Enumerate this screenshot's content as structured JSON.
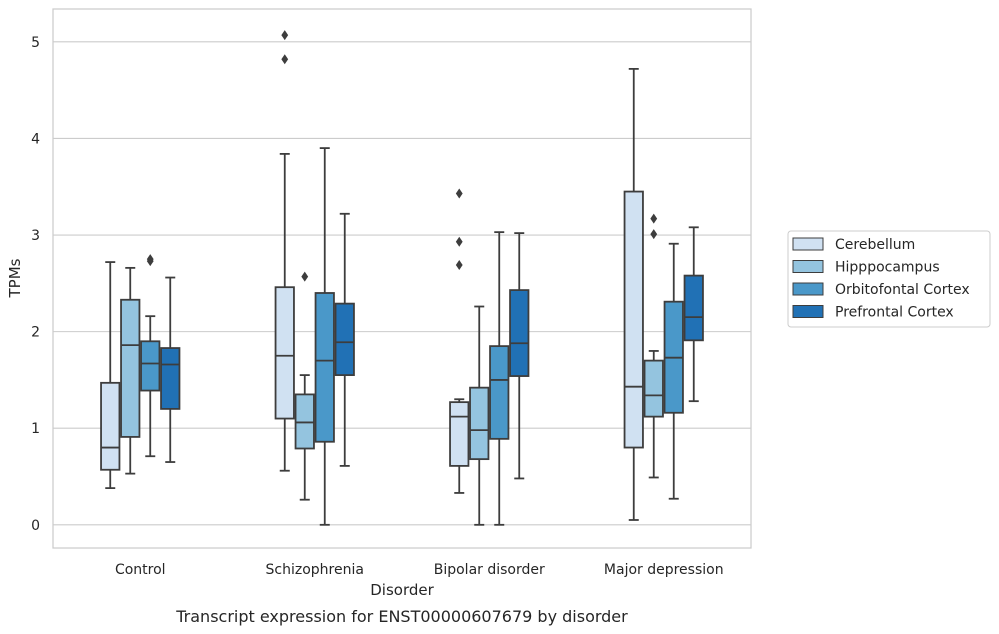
{
  "chart_data": {
    "type": "box",
    "title": "Transcript expression for ENST00000607679 by disorder",
    "xlabel": "Disorder",
    "ylabel": "TPMs",
    "ylim": [
      -0.24,
      5.34
    ],
    "yticks": [
      "0",
      "1",
      "2",
      "3",
      "4",
      "5"
    ],
    "grid": "horizontal",
    "legend_position": "right",
    "categories": [
      "Control",
      "Schizophrenia",
      "Bipolar disorder",
      "Major depression"
    ],
    "series": [
      {
        "name": "Cerebellum",
        "color": "#d0e1f2",
        "boxes": [
          {
            "whislo": 0.38,
            "q1": 0.57,
            "med": 0.8,
            "q3": 1.47,
            "whishi": 2.72,
            "fliers": []
          },
          {
            "whislo": 0.56,
            "q1": 1.1,
            "med": 1.75,
            "q3": 2.46,
            "whishi": 3.84,
            "fliers": [
              4.82,
              5.07
            ]
          },
          {
            "whislo": 0.33,
            "q1": 0.61,
            "med": 1.12,
            "q3": 1.27,
            "whishi": 1.3,
            "fliers": [
              2.69,
              2.93,
              3.43
            ]
          },
          {
            "whislo": 0.05,
            "q1": 0.8,
            "med": 1.43,
            "q3": 3.45,
            "whishi": 4.72,
            "fliers": []
          }
        ]
      },
      {
        "name": "Hipppocampus",
        "color": "#94c4df",
        "boxes": [
          {
            "whislo": 0.53,
            "q1": 0.91,
            "med": 1.86,
            "q3": 2.33,
            "whishi": 2.66,
            "fliers": []
          },
          {
            "whislo": 0.26,
            "q1": 0.79,
            "med": 1.06,
            "q3": 1.35,
            "whishi": 1.55,
            "fliers": [
              2.57
            ]
          },
          {
            "whislo": 0.0,
            "q1": 0.68,
            "med": 0.98,
            "q3": 1.42,
            "whishi": 2.26,
            "fliers": []
          },
          {
            "whislo": 0.49,
            "q1": 1.12,
            "med": 1.34,
            "q3": 1.7,
            "whishi": 1.8,
            "fliers": [
              3.01,
              3.17
            ]
          }
        ]
      },
      {
        "name": "Orbitofontal Cortex",
        "color": "#4a98c9",
        "boxes": [
          {
            "whislo": 0.71,
            "q1": 1.39,
            "med": 1.67,
            "q3": 1.9,
            "whishi": 2.16,
            "fliers": [
              2.73,
              2.75
            ]
          },
          {
            "whislo": 0.0,
            "q1": 0.86,
            "med": 1.7,
            "q3": 2.4,
            "whishi": 3.9,
            "fliers": []
          },
          {
            "whislo": 0.0,
            "q1": 0.89,
            "med": 1.5,
            "q3": 1.85,
            "whishi": 3.03,
            "fliers": []
          },
          {
            "whislo": 0.27,
            "q1": 1.16,
            "med": 1.73,
            "q3": 2.31,
            "whishi": 2.91,
            "fliers": []
          }
        ]
      },
      {
        "name": "Prefrontal Cortex",
        "color": "#2171b5",
        "boxes": [
          {
            "whislo": 0.65,
            "q1": 1.2,
            "med": 1.66,
            "q3": 1.83,
            "whishi": 2.56,
            "fliers": []
          },
          {
            "whislo": 0.61,
            "q1": 1.55,
            "med": 1.89,
            "q3": 2.29,
            "whishi": 3.22,
            "fliers": []
          },
          {
            "whislo": 0.48,
            "q1": 1.54,
            "med": 1.88,
            "q3": 2.43,
            "whishi": 3.02,
            "fliers": []
          },
          {
            "whislo": 1.28,
            "q1": 1.91,
            "med": 2.15,
            "q3": 2.58,
            "whishi": 3.08,
            "fliers": []
          }
        ]
      }
    ]
  }
}
